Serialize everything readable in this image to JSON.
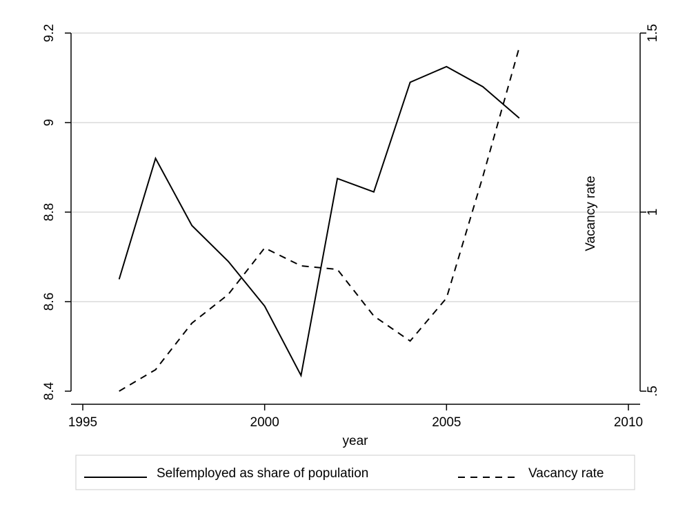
{
  "chart_data": {
    "type": "line",
    "xlabel": "year",
    "y2label": "Vacancy rate",
    "xlim": [
      1995,
      2010
    ],
    "ylim": [
      8.4,
      9.2
    ],
    "y2lim": [
      0.5,
      1.5
    ],
    "x_ticks": [
      1995,
      2000,
      2005,
      2010
    ],
    "x_tick_labels": [
      "1995",
      "2000",
      "2005",
      "2010"
    ],
    "y_ticks": [
      8.4,
      8.6,
      8.8,
      9,
      9.2
    ],
    "y_tick_labels": [
      "8.4",
      "8.6",
      "8.8",
      "9",
      "9.2"
    ],
    "y2_ticks": [
      0.5,
      1,
      1.5
    ],
    "y2_tick_labels": [
      ".5",
      "1",
      "1.5"
    ],
    "grid": true,
    "legend_position": "bottom",
    "series": [
      {
        "name": "Selfemployed as share of population",
        "axis": "left",
        "dash": "solid",
        "color": "#000000",
        "x": [
          1996,
          1997,
          1998,
          1999,
          2000,
          2001,
          2002,
          2003,
          2004,
          2005,
          2006,
          2007
        ],
        "y": [
          8.65,
          8.92,
          8.77,
          8.69,
          8.59,
          8.435,
          8.875,
          8.845,
          9.09,
          9.125,
          9.08,
          9.01
        ]
      },
      {
        "name": "Vacancy rate",
        "axis": "right",
        "dash": "dashed",
        "color": "#000000",
        "x": [
          1996,
          1997,
          1998,
          1999,
          2000,
          2001,
          2002,
          2003,
          2004,
          2005,
          2006,
          2007
        ],
        "y": [
          0.5,
          0.56,
          0.69,
          0.77,
          0.9,
          0.85,
          0.84,
          0.71,
          0.64,
          0.76,
          1.1,
          1.46
        ]
      }
    ]
  }
}
